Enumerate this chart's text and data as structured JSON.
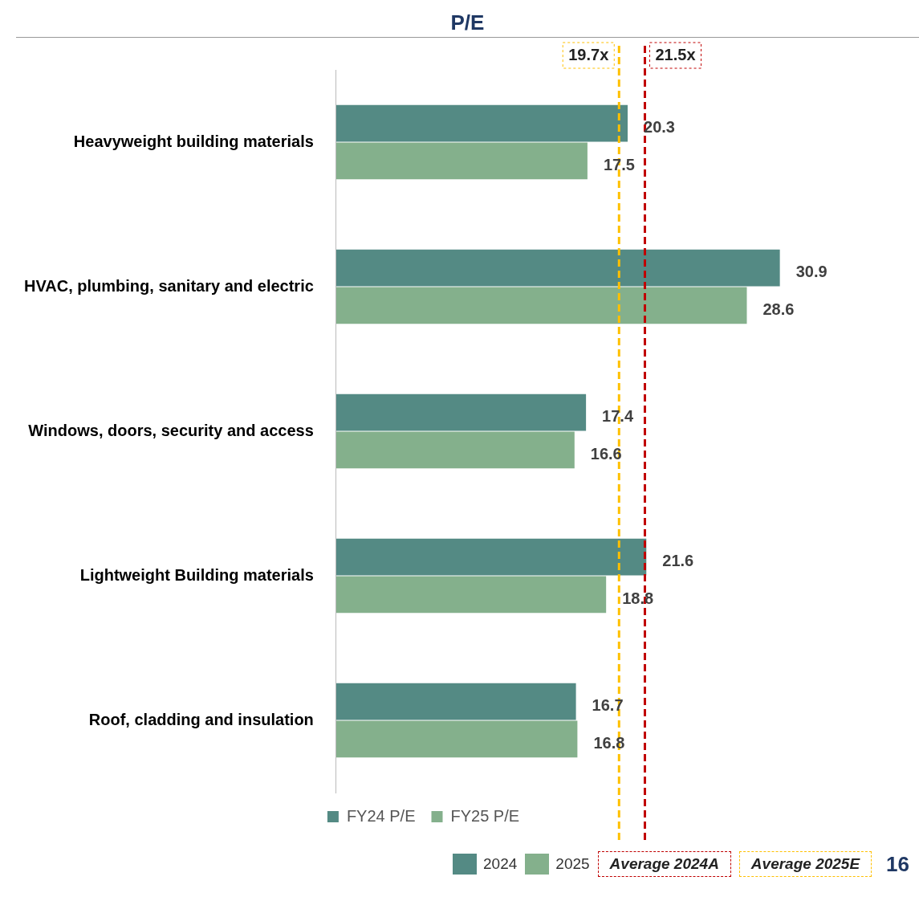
{
  "chart_data": {
    "type": "bar",
    "orientation": "horizontal",
    "title": "P/E",
    "categories": [
      "Heavyweight building materials",
      "HVAC, plumbing, sanitary and electric",
      "Windows, doors, security and access",
      "Lightweight Building materials",
      "Roof, cladding and insulation"
    ],
    "series": [
      {
        "name": "FY24 P/E",
        "color": "#548a84",
        "values": [
          20.3,
          30.9,
          17.4,
          21.6,
          16.7
        ]
      },
      {
        "name": "FY25 P/E",
        "color": "#84b08c",
        "values": [
          17.5,
          28.6,
          16.6,
          18.8,
          16.8
        ]
      }
    ],
    "ref_lines": [
      {
        "axis": "x",
        "value": 21.5,
        "label": "21.5x",
        "color": "#c00000",
        "line_style": "dashed"
      },
      {
        "axis": "x",
        "value": 19.7,
        "label": "19.7x",
        "color": "#ffc000",
        "line_style": "dashed"
      }
    ],
    "data_labels": true,
    "legend": "bottom",
    "tick_labels": "y",
    "annotations": [
      "2024",
      "2025",
      "Average 2024A",
      "Average 2025E",
      "16"
    ]
  }
}
